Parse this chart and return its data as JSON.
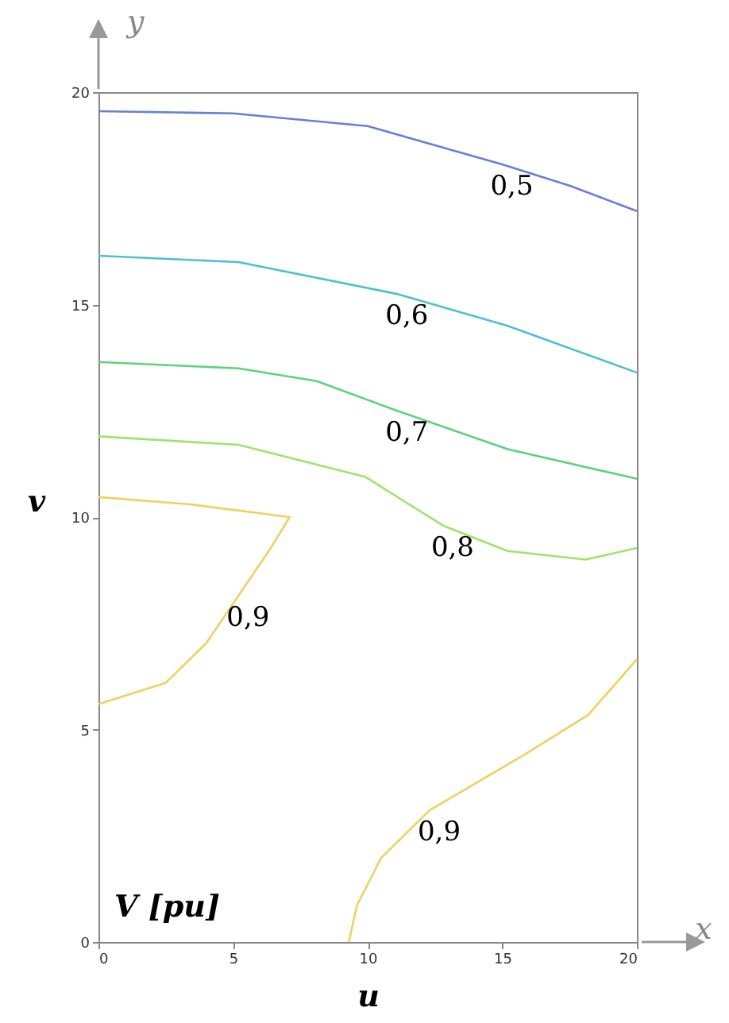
{
  "chart_data": {
    "type": "line",
    "xlabel": "u",
    "ylabel": "v",
    "xlim": [
      0,
      20
    ],
    "ylim": [
      0,
      20
    ],
    "xticks": [
      0,
      5,
      10,
      15,
      20
    ],
    "yticks": [
      0,
      5,
      10,
      15,
      20
    ],
    "grid": false,
    "legend": false,
    "marker": "none",
    "line_style": "solid",
    "annotations": [
      "V [pu]",
      "x",
      "y"
    ],
    "series": [
      {
        "name": "0,5",
        "color": "#6a7fd4",
        "x": [
          0,
          5,
          10,
          15,
          17.5,
          20
        ],
        "values": [
          19.55,
          19.5,
          19.2,
          18.3,
          17.8,
          17.2
        ]
      },
      {
        "name": "0,6",
        "color": "#4ec0cf",
        "x": [
          0,
          5.2,
          11.1,
          15.2,
          20
        ],
        "values": [
          16.15,
          16.0,
          15.25,
          14.5,
          13.4
        ]
      },
      {
        "name": "0,7",
        "color": "#5cd37a",
        "x": [
          0,
          5.2,
          8.1,
          11.1,
          15.2,
          20
        ],
        "values": [
          13.65,
          13.5,
          13.2,
          12.5,
          11.6,
          10.9
        ]
      },
      {
        "name": "0,8",
        "color": "#9ee46a",
        "x": [
          0,
          5.2,
          9.9,
          12.8,
          15.2,
          18.1,
          20
        ],
        "values": [
          11.9,
          11.7,
          10.95,
          9.8,
          9.2,
          9.0,
          9.27
        ]
      },
      {
        "name": "0,9",
        "color": "#f0d060",
        "x": [
          0,
          3.4,
          7.1,
          6.4,
          5.2,
          4.0,
          2.5,
          0
        ],
        "values": [
          10.47,
          10.3,
          10.0,
          9.27,
          8.15,
          7.03,
          6.1,
          5.6
        ]
      },
      {
        "name": "0,9",
        "color": "#f0d060",
        "x": [
          9.3,
          9.6,
          10.5,
          12.3,
          15.8,
          18.2,
          20
        ],
        "values": [
          0,
          0.86,
          1.98,
          3.1,
          4.4,
          5.35,
          6.65
        ]
      }
    ]
  }
}
